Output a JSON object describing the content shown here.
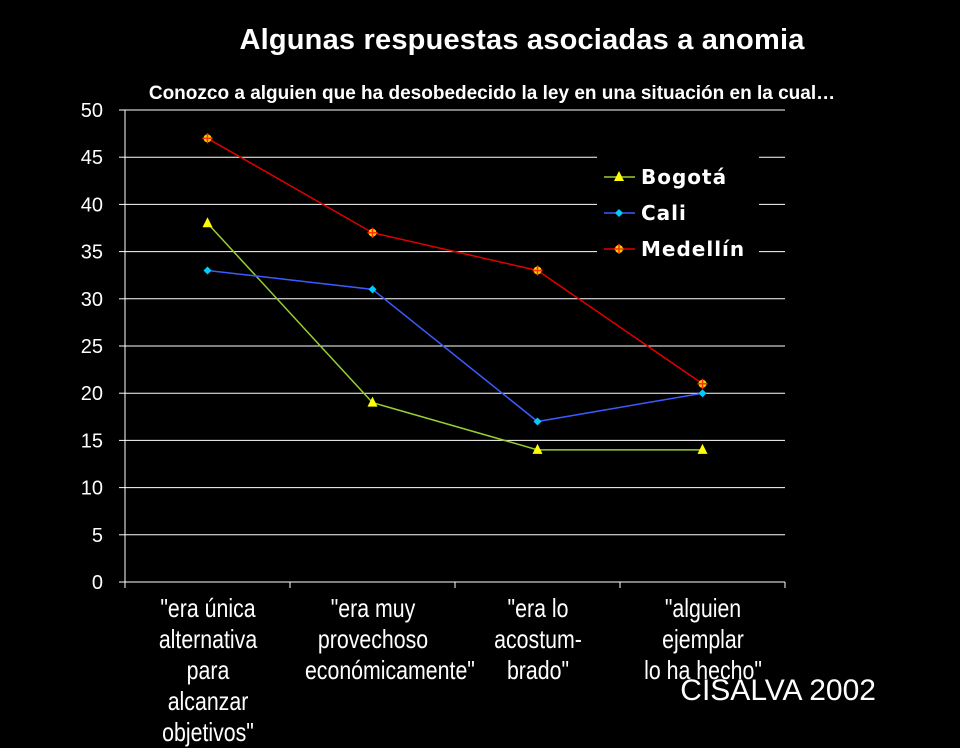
{
  "chart_data": {
    "type": "line",
    "title": "Algunas respuestas asociadas a anomia",
    "subtitle": "Conozco a alguien que ha desobedecido la ley en una situación en la cual…",
    "categories": [
      "\"era única alternativa para alcanzar objetivos\"",
      "\"era muy provechoso económicamente\"",
      "\"era lo acostum- brado\"",
      "\"alguien ejemplar lo ha hecho\""
    ],
    "category_lines": [
      [
        "\"era única",
        "alternativa para",
        "alcanzar",
        "objetivos\""
      ],
      [
        "\"era muy",
        "provechoso",
        "económicamente\""
      ],
      [
        "\"era lo acostum-",
        "brado\""
      ],
      [
        "\"alguien ejemplar",
        "lo ha hecho\""
      ]
    ],
    "ylim": [
      0,
      50
    ],
    "yticks": [
      "0",
      "5",
      "10",
      "15",
      "20",
      "25",
      "30",
      "35",
      "40",
      "45",
      "50"
    ],
    "grid": true,
    "legend_position": "top-right",
    "series": [
      {
        "name": "Bogotá",
        "values": [
          38,
          19,
          14,
          14
        ],
        "color": "#9acd32",
        "marker_color": "#ffff00",
        "marker": "triangle"
      },
      {
        "name": "Cali",
        "values": [
          33,
          31,
          17,
          20
        ],
        "color": "#3b5bff",
        "marker_color": "#00ccff",
        "marker": "diamond"
      },
      {
        "name": "Medellín",
        "values": [
          47,
          37,
          33,
          21
        ],
        "color": "#e00000",
        "marker_color": "#ffcc00",
        "marker": "star"
      }
    ]
  },
  "source": "CISALVA 2002"
}
